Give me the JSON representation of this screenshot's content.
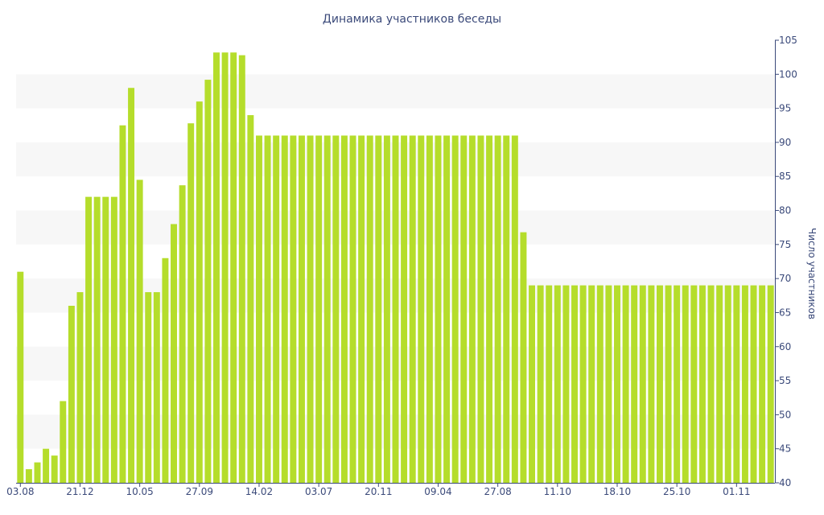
{
  "chart_data": {
    "type": "bar",
    "title": "Динамика участников беседы",
    "xlabel": "",
    "ylabel": "Число участников",
    "ylim": [
      40,
      105
    ],
    "y_ticks": [
      40,
      45,
      50,
      55,
      60,
      65,
      70,
      75,
      80,
      85,
      90,
      95,
      100,
      105
    ],
    "x_tick_labels": [
      {
        "index": 0,
        "label": "03.08"
      },
      {
        "index": 7,
        "label": "21.12"
      },
      {
        "index": 14,
        "label": "10.05"
      },
      {
        "index": 21,
        "label": "27.09"
      },
      {
        "index": 28,
        "label": "14.02"
      },
      {
        "index": 35,
        "label": "03.07"
      },
      {
        "index": 42,
        "label": "20.11"
      },
      {
        "index": 49,
        "label": "09.04"
      },
      {
        "index": 56,
        "label": "27.08"
      },
      {
        "index": 63,
        "label": "11.10"
      },
      {
        "index": 70,
        "label": "18.10"
      },
      {
        "index": 77,
        "label": "25.10"
      },
      {
        "index": 84,
        "label": "01.11"
      }
    ],
    "grid": "alternating horizontal bands",
    "legend": "none",
    "bar_color": "#b5dd2b",
    "band_color": "#f7f7f7",
    "text_color": "#3b4a7a",
    "axis_color": "#3b4a7a",
    "values": [
      71,
      42,
      43,
      45,
      44,
      52,
      66,
      68,
      82,
      82,
      82,
      82,
      92.5,
      98,
      84.5,
      68,
      68,
      73,
      78,
      83.7,
      92.8,
      96,
      99.2,
      103.2,
      103.2,
      103.2,
      102.8,
      94,
      91,
      91,
      91,
      91,
      91,
      91,
      91,
      91,
      91,
      91,
      91,
      91,
      91,
      91,
      91,
      91,
      91,
      91,
      91,
      91,
      91,
      91,
      91,
      91,
      91,
      91,
      91,
      91,
      91,
      91,
      91,
      76.8,
      69,
      69,
      69,
      69,
      69,
      69,
      69,
      69,
      69,
      69,
      69,
      69,
      69,
      69,
      69,
      69,
      69,
      69,
      69,
      69,
      69,
      69,
      69,
      69,
      69,
      69,
      69,
      69,
      69
    ]
  }
}
